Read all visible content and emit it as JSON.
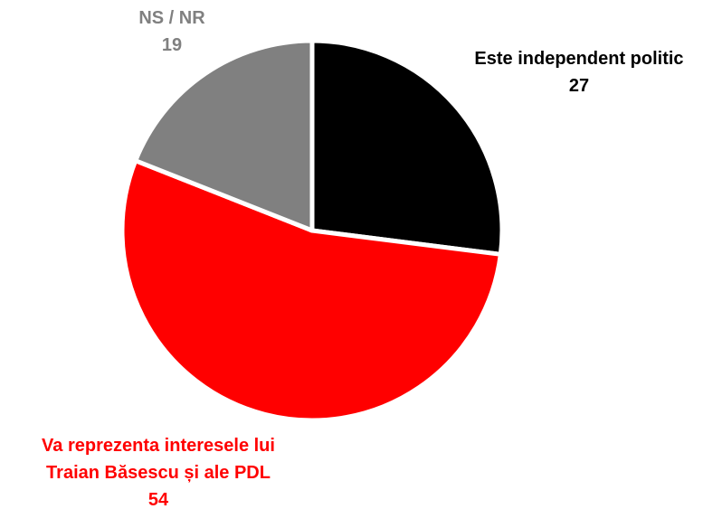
{
  "chart_data": {
    "type": "pie",
    "categories": [
      "Este independent politic",
      "Va reprezenta interesele lui Traian Băsescu și ale PDL",
      "NS / NR"
    ],
    "values": [
      27,
      54,
      19
    ],
    "colors": [
      "#000000",
      "#ff0000",
      "#808080"
    ]
  }
}
